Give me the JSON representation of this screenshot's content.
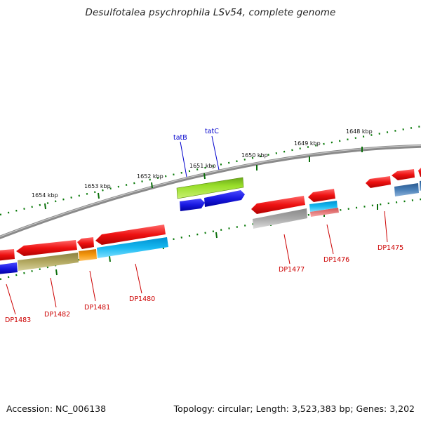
{
  "title": "Desulfotalea psychrophila LSv54, complete genome",
  "footer": {
    "accession": "Accession: NC_006138",
    "meta": "Topology: circular; Length: 3,523,383 bp; Genes: 3,202"
  },
  "scale_labels": [
    "1654 kbp",
    "1653 kbp",
    "1652 kbp",
    "1651 kbp",
    "1650 kbp",
    "1649 kbp",
    "1648 kbp"
  ],
  "gene_labels_top": [
    "tatB",
    "tatC"
  ],
  "gene_labels_bottom": [
    "DP1483",
    "DP1482",
    "DP1481",
    "DP1480",
    "DP1477",
    "DP1476",
    "DP1475"
  ],
  "colors": {
    "backbone": "#777777",
    "tick_green": "#0a6e0a",
    "red": "#ee1111",
    "blue": "#1818e0",
    "lime": "#9adf2a",
    "olive": "#b2a860",
    "orange": "#f59a10",
    "cyan": "#16b8f0",
    "gray": "#a8a8a8",
    "steelblue": "#4a80b8",
    "pink": "#f08080"
  }
}
